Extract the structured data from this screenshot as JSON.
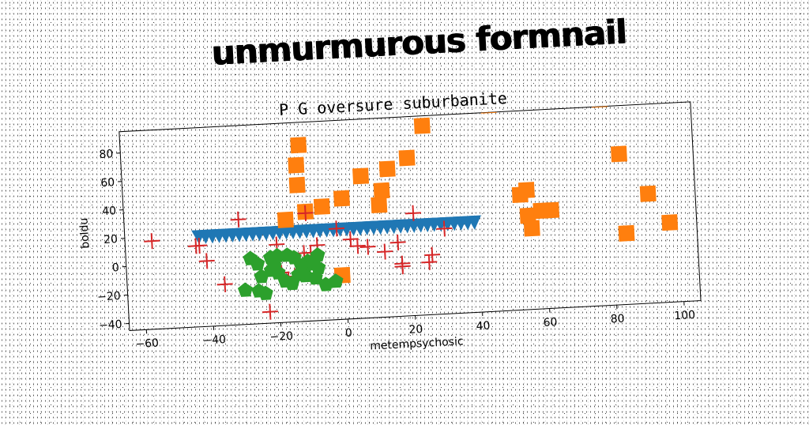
{
  "super_title": "unmurmurous formnail",
  "chart_data": {
    "type": "scatter",
    "title": "P G oversure suburbanite",
    "xlabel": "metempsychosic",
    "ylabel": "boldu",
    "xlim": [
      -65,
      105
    ],
    "ylim": [
      -45,
      95
    ],
    "x_ticks": [
      -60,
      -40,
      -20,
      0,
      20,
      40,
      60,
      80,
      100
    ],
    "y_ticks": [
      -40,
      -20,
      0,
      20,
      40,
      60,
      80
    ],
    "grid": false,
    "series": [
      {
        "marker": "triangle-down",
        "color": "#1f77b4",
        "x": [
          -43,
          -41,
          -39,
          -37,
          -35,
          -33,
          -31,
          -29,
          -27,
          -25,
          -23,
          -21,
          -19,
          -17,
          -15,
          -13,
          -11,
          -9,
          -7,
          -5,
          -3,
          -1,
          1,
          3,
          5,
          7,
          9,
          11,
          13,
          15,
          17,
          19,
          21,
          23,
          25,
          27,
          29,
          31,
          33,
          35,
          37,
          39
        ],
        "y": [
          18,
          18,
          18,
          18,
          18,
          18,
          18,
          18,
          18,
          18,
          18,
          18,
          18,
          18,
          18,
          18,
          18,
          18,
          18,
          18,
          18,
          18,
          18,
          18,
          18,
          18,
          18,
          18,
          18,
          18,
          18,
          18,
          18,
          18,
          18,
          18,
          18,
          18,
          18,
          18,
          18,
          18
        ]
      },
      {
        "marker": "square",
        "color": "#ff7f0e",
        "x": [
          -17,
          -13,
          -13,
          -12,
          -11,
          -6,
          0,
          6,
          11,
          12,
          14,
          20,
          25,
          45,
          53,
          55,
          55,
          56,
          59,
          62,
          75,
          78,
          83,
          91,
          84,
          97,
          -1
        ],
        "y": [
          27,
          65,
          51,
          79,
          32,
          35,
          40,
          55,
          34,
          44,
          59,
          66,
          88,
          100,
          36,
          39,
          21,
          12,
          24,
          24,
          104,
          100,
          61,
          32,
          5,
          11,
          -14
        ]
      },
      {
        "marker": "plus",
        "color": "#d62728",
        "x": [
          -57,
          -44,
          -43,
          -41,
          -31,
          -23,
          -20,
          -19,
          -17,
          -15,
          -12,
          -12,
          -11,
          -10,
          -8,
          -2,
          2,
          4,
          7,
          12,
          16,
          17,
          17,
          21,
          25,
          26,
          30,
          -36
        ],
        "y": [
          17,
          12,
          12,
          1,
          29,
          -37,
          10,
          -10,
          -15,
          -13,
          3,
          -3,
          31,
          3,
          8,
          19,
          11,
          6,
          5,
          1,
          7,
          -8,
          -10,
          27,
          -8,
          -3,
          15,
          -16
        ]
      },
      {
        "marker": "pentagon",
        "color": "#2ca02c",
        "x": [
          -30,
          -26,
          -24,
          -22,
          -20,
          -18,
          -16,
          -14,
          -12,
          -10,
          -8,
          -26,
          -22,
          -17,
          -15,
          -12,
          -9,
          -6,
          -28,
          -20,
          -25,
          -11,
          -8,
          -3,
          -13,
          -21
        ],
        "y": [
          -21,
          -22,
          -24,
          -8,
          -10,
          -16,
          -18,
          -12,
          -13,
          -5,
          -8,
          -3,
          1,
          2,
          0,
          -8,
          -15,
          -20,
          1,
          2,
          -12,
          -3,
          1,
          -18,
          -6,
          -5
        ]
      }
    ]
  }
}
